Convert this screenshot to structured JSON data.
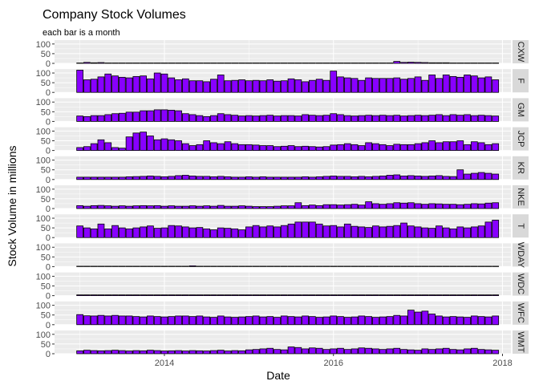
{
  "chart_data": {
    "type": "bar",
    "title": "Company Stock Volumes",
    "subtitle": "each bar is a month",
    "xlabel": "Date",
    "ylabel": "Stock Volume in millions",
    "x_ticks": [
      "2014",
      "2016",
      "2018"
    ],
    "x_tick_values": [
      2014.0,
      2016.0,
      2018.0
    ],
    "xlim": [
      2012.7,
      2018.1
    ],
    "y_ticks": [
      "0",
      "50",
      "100"
    ],
    "y_tick_values": [
      0,
      50,
      100
    ],
    "ylim": [
      0,
      120
    ],
    "grid": true,
    "facet_layout": "rows, labels on right strip",
    "colors": {
      "bar_fill": "#8800ff",
      "bar_outline": "#000000",
      "panel_bg": "#ebebeb",
      "grid": "#ffffff",
      "strip_bg": "#d9d9d9"
    },
    "months": [
      "2013-01",
      "2013-02",
      "2013-03",
      "2013-04",
      "2013-05",
      "2013-06",
      "2013-07",
      "2013-08",
      "2013-09",
      "2013-10",
      "2013-11",
      "2013-12",
      "2014-01",
      "2014-02",
      "2014-03",
      "2014-04",
      "2014-05",
      "2014-06",
      "2014-07",
      "2014-08",
      "2014-09",
      "2014-10",
      "2014-11",
      "2014-12",
      "2015-01",
      "2015-02",
      "2015-03",
      "2015-04",
      "2015-05",
      "2015-06",
      "2015-07",
      "2015-08",
      "2015-09",
      "2015-10",
      "2015-11",
      "2015-12",
      "2016-01",
      "2016-02",
      "2016-03",
      "2016-04",
      "2016-05",
      "2016-06",
      "2016-07",
      "2016-08",
      "2016-09",
      "2016-10",
      "2016-11",
      "2016-12",
      "2017-01",
      "2017-02",
      "2017-03",
      "2017-04",
      "2017-05",
      "2017-06",
      "2017-07",
      "2017-08",
      "2017-09",
      "2017-10",
      "2017-11",
      "2017-12"
    ],
    "series": [
      {
        "name": "CXW",
        "values": [
          2,
          5,
          3,
          4,
          2,
          2,
          2,
          2,
          2,
          2,
          2,
          2,
          2,
          2,
          2,
          2,
          2,
          2,
          2,
          2,
          2,
          2,
          2,
          2,
          2,
          2,
          2,
          2,
          2,
          2,
          2,
          2,
          2,
          2,
          2,
          2,
          2,
          2,
          2,
          2,
          2,
          2,
          2,
          2,
          2,
          10,
          5,
          6,
          5,
          4,
          3,
          3,
          3,
          2,
          2,
          2,
          2,
          2,
          2,
          2
        ]
      },
      {
        "name": "F",
        "values": [
          115,
          65,
          68,
          80,
          95,
          85,
          78,
          75,
          82,
          85,
          70,
          100,
          95,
          75,
          65,
          70,
          60,
          60,
          55,
          68,
          90,
          60,
          62,
          65,
          60,
          62,
          60,
          65,
          58,
          60,
          70,
          65,
          55,
          62,
          68,
          62,
          110,
          80,
          75,
          72,
          62,
          75,
          72,
          72,
          72,
          75,
          68,
          72,
          80,
          62,
          90,
          72,
          90,
          82,
          78,
          90,
          85,
          75,
          80,
          65
        ]
      },
      {
        "name": "GM",
        "values": [
          28,
          25,
          30,
          30,
          35,
          40,
          42,
          48,
          48,
          55,
          55,
          60,
          60,
          58,
          55,
          40,
          35,
          30,
          25,
          30,
          40,
          35,
          32,
          28,
          30,
          28,
          30,
          32,
          28,
          30,
          30,
          28,
          35,
          32,
          30,
          32,
          40,
          35,
          30,
          28,
          30,
          32,
          30,
          32,
          30,
          32,
          28,
          30,
          32,
          30,
          32,
          35,
          30,
          35,
          32,
          35,
          30,
          32,
          30,
          28
        ]
      },
      {
        "name": "JCP",
        "values": [
          15,
          20,
          35,
          55,
          40,
          15,
          12,
          70,
          90,
          95,
          75,
          55,
          60,
          55,
          50,
          35,
          25,
          30,
          50,
          40,
          35,
          45,
          35,
          30,
          30,
          28,
          25,
          25,
          20,
          22,
          25,
          20,
          22,
          20,
          18,
          20,
          28,
          30,
          35,
          30,
          25,
          40,
          35,
          30,
          25,
          32,
          30,
          30,
          35,
          40,
          50,
          40,
          45,
          45,
          50,
          30,
          45,
          40,
          30,
          35
        ]
      },
      {
        "name": "KR",
        "values": [
          12,
          12,
          12,
          12,
          12,
          12,
          12,
          14,
          15,
          16,
          18,
          16,
          14,
          16,
          20,
          22,
          18,
          16,
          16,
          14,
          16,
          14,
          12,
          12,
          14,
          12,
          14,
          12,
          12,
          12,
          12,
          12,
          14,
          12,
          14,
          16,
          18,
          16,
          16,
          14,
          16,
          14,
          16,
          18,
          22,
          24,
          18,
          20,
          18,
          16,
          18,
          20,
          16,
          15,
          50,
          28,
          32,
          36,
          32,
          28
        ]
      },
      {
        "name": "NKE",
        "values": [
          15,
          12,
          15,
          16,
          14,
          12,
          14,
          12,
          14,
          15,
          14,
          15,
          12,
          14,
          12,
          12,
          14,
          12,
          14,
          12,
          16,
          12,
          12,
          14,
          12,
          10,
          10,
          10,
          12,
          14,
          14,
          30,
          15,
          18,
          15,
          20,
          20,
          18,
          20,
          22,
          18,
          35,
          25,
          22,
          25,
          30,
          28,
          30,
          25,
          22,
          25,
          24,
          22,
          22,
          20,
          22,
          25,
          24,
          28,
          30
        ]
      },
      {
        "name": "T",
        "values": [
          60,
          50,
          45,
          70,
          45,
          62,
          50,
          45,
          50,
          55,
          60,
          48,
          50,
          62,
          60,
          55,
          50,
          52,
          45,
          40,
          50,
          48,
          45,
          40,
          55,
          62,
          55,
          60,
          55,
          62,
          70,
          80,
          80,
          80,
          70,
          60,
          62,
          55,
          70,
          58,
          55,
          52,
          60,
          55,
          58,
          62,
          75,
          60,
          55,
          50,
          48,
          60,
          50,
          45,
          55,
          50,
          55,
          60,
          80,
          90
        ]
      },
      {
        "name": "WDAY",
        "values": [
          2,
          2,
          2,
          2,
          2,
          2,
          2,
          2,
          2,
          2,
          2,
          2,
          2,
          2,
          2,
          2,
          4,
          2,
          2,
          2,
          2,
          2,
          2,
          2,
          2,
          2,
          2,
          2,
          2,
          2,
          2,
          2,
          2,
          2,
          2,
          2,
          2,
          2,
          2,
          2,
          2,
          2,
          2,
          2,
          2,
          2,
          2,
          2,
          2,
          2,
          2,
          2,
          2,
          2,
          2,
          2,
          2,
          2,
          2,
          2
        ]
      },
      {
        "name": "WDC",
        "values": [
          4,
          4,
          4,
          4,
          4,
          4,
          4,
          4,
          4,
          4,
          4,
          4,
          4,
          4,
          4,
          4,
          4,
          4,
          4,
          4,
          4,
          4,
          4,
          4,
          4,
          4,
          4,
          4,
          4,
          4,
          4,
          4,
          4,
          4,
          4,
          4,
          4,
          4,
          4,
          4,
          4,
          4,
          4,
          4,
          4,
          4,
          4,
          4,
          4,
          4,
          4,
          4,
          4,
          4,
          4,
          4,
          4,
          4,
          4,
          4
        ]
      },
      {
        "name": "WFC",
        "values": [
          52,
          46,
          45,
          48,
          45,
          48,
          45,
          45,
          42,
          40,
          45,
          42,
          40,
          42,
          45,
          45,
          42,
          45,
          40,
          38,
          45,
          40,
          38,
          40,
          42,
          45,
          40,
          42,
          38,
          45,
          42,
          40,
          45,
          42,
          38,
          40,
          45,
          42,
          38,
          40,
          45,
          42,
          38,
          40,
          42,
          48,
          45,
          75,
          65,
          70,
          55,
          45,
          40,
          42,
          40,
          38,
          45,
          42,
          40,
          45
        ]
      },
      {
        "name": "WMT",
        "values": [
          15,
          18,
          16,
          15,
          16,
          18,
          16,
          14,
          16,
          15,
          18,
          16,
          14,
          15,
          16,
          14,
          16,
          15,
          14,
          16,
          18,
          14,
          16,
          15,
          20,
          22,
          25,
          28,
          22,
          20,
          35,
          32,
          25,
          30,
          28,
          22,
          25,
          28,
          22,
          25,
          30,
          28,
          25,
          22,
          25,
          28,
          22,
          20,
          18,
          25,
          22,
          25,
          28,
          22,
          20,
          25,
          28,
          22,
          20,
          18
        ]
      }
    ]
  }
}
